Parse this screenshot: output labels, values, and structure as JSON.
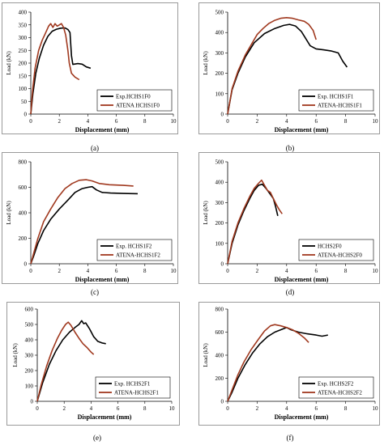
{
  "colors": {
    "experimental": "#000000",
    "atena": "#a0391f"
  },
  "charts": [
    {
      "caption": "(a)",
      "chart_data": {
        "type": "line",
        "xlabel": "Displacement (mm)",
        "ylabel": "Load (kN)",
        "xlim": [
          0,
          10
        ],
        "ylim": [
          0,
          400
        ],
        "xticks": [
          0,
          2,
          4,
          6,
          8,
          10
        ],
        "yticks": [
          0,
          50,
          100,
          150,
          200,
          250,
          300,
          350,
          400
        ],
        "legend_position": "bottom-right",
        "series": [
          {
            "name": "Exp.HCHS1F0",
            "color": "#000000",
            "points": [
              [
                0,
                0
              ],
              [
                0.15,
                80
              ],
              [
                0.35,
                160
              ],
              [
                0.6,
                220
              ],
              [
                0.9,
                270
              ],
              [
                1.2,
                305
              ],
              [
                1.5,
                325
              ],
              [
                1.8,
                333
              ],
              [
                2.1,
                337
              ],
              [
                2.4,
                338
              ],
              [
                2.6,
                332
              ],
              [
                2.75,
                320
              ],
              [
                2.85,
                230
              ],
              [
                2.95,
                195
              ],
              [
                3.3,
                198
              ],
              [
                3.6,
                196
              ],
              [
                3.9,
                185
              ],
              [
                4.2,
                180
              ]
            ]
          },
          {
            "name": "ATENA HCHS1F0",
            "color": "#a0391f",
            "points": [
              [
                0,
                0
              ],
              [
                0.12,
                90
              ],
              [
                0.3,
                180
              ],
              [
                0.55,
                250
              ],
              [
                0.8,
                290
              ],
              [
                1.05,
                320
              ],
              [
                1.25,
                345
              ],
              [
                1.4,
                355
              ],
              [
                1.55,
                340
              ],
              [
                1.7,
                355
              ],
              [
                1.85,
                345
              ],
              [
                2.0,
                350
              ],
              [
                2.15,
                355
              ],
              [
                2.3,
                340
              ],
              [
                2.45,
                310
              ],
              [
                2.6,
                250
              ],
              [
                2.7,
                200
              ],
              [
                2.85,
                160
              ],
              [
                3.1,
                145
              ],
              [
                3.4,
                135
              ]
            ]
          }
        ]
      }
    },
    {
      "caption": "(b)",
      "chart_data": {
        "type": "line",
        "xlabel": "Displacement (mm)",
        "ylabel": "Load (kN)",
        "xlim": [
          0,
          10
        ],
        "ylim": [
          0,
          500
        ],
        "xticks": [
          0,
          2,
          4,
          6,
          8,
          10
        ],
        "yticks": [
          0,
          100,
          200,
          300,
          400,
          500
        ],
        "legend_position": "bottom-right",
        "series": [
          {
            "name": "Exp. HCHS1F1",
            "color": "#000000",
            "points": [
              [
                0,
                0
              ],
              [
                0.3,
                120
              ],
              [
                0.7,
                200
              ],
              [
                1.2,
                280
              ],
              [
                1.8,
                350
              ],
              [
                2.5,
                395
              ],
              [
                3.2,
                420
              ],
              [
                3.8,
                435
              ],
              [
                4.2,
                440
              ],
              [
                4.6,
                432
              ],
              [
                5.0,
                405
              ],
              [
                5.3,
                370
              ],
              [
                5.6,
                335
              ],
              [
                6.0,
                320
              ],
              [
                6.5,
                315
              ],
              [
                7.0,
                310
              ],
              [
                7.5,
                300
              ],
              [
                7.8,
                260
              ],
              [
                8.1,
                230
              ]
            ]
          },
          {
            "name": "ATENA-HCHS1F1",
            "color": "#a0391f",
            "points": [
              [
                0,
                0
              ],
              [
                0.3,
                125
              ],
              [
                0.7,
                210
              ],
              [
                1.2,
                290
              ],
              [
                1.6,
                340
              ],
              [
                2.0,
                390
              ],
              [
                2.4,
                420
              ],
              [
                2.8,
                445
              ],
              [
                3.2,
                460
              ],
              [
                3.6,
                470
              ],
              [
                4.0,
                473
              ],
              [
                4.4,
                470
              ],
              [
                4.8,
                462
              ],
              [
                5.2,
                455
              ],
              [
                5.5,
                440
              ],
              [
                5.8,
                410
              ],
              [
                6.0,
                365
              ]
            ]
          }
        ]
      }
    },
    {
      "caption": "(c)",
      "chart_data": {
        "type": "line",
        "xlabel": "Displacement (mm)",
        "ylabel": "Load (kN)",
        "xlim": [
          0,
          10
        ],
        "ylim": [
          0,
          800
        ],
        "xticks": [
          0,
          2,
          4,
          6,
          8,
          10
        ],
        "yticks": [
          0,
          200,
          400,
          600,
          800
        ],
        "legend_position": "bottom-right",
        "series": [
          {
            "name": "Exp. HCHS1F2",
            "color": "#000000",
            "points": [
              [
                0,
                0
              ],
              [
                0.2,
                60
              ],
              [
                0.5,
                160
              ],
              [
                0.9,
                260
              ],
              [
                1.4,
                350
              ],
              [
                2.0,
                430
              ],
              [
                2.6,
                500
              ],
              [
                3.1,
                560
              ],
              [
                3.6,
                590
              ],
              [
                4.0,
                600
              ],
              [
                4.3,
                605
              ],
              [
                4.6,
                580
              ],
              [
                5.0,
                560
              ],
              [
                5.6,
                555
              ],
              [
                6.5,
                552
              ],
              [
                7.5,
                550
              ]
            ]
          },
          {
            "name": "ATENA-HCHS1F2",
            "color": "#a0391f",
            "points": [
              [
                0,
                0
              ],
              [
                0.2,
                80
              ],
              [
                0.5,
                200
              ],
              [
                0.9,
                330
              ],
              [
                1.4,
                430
              ],
              [
                1.9,
                520
              ],
              [
                2.4,
                590
              ],
              [
                2.9,
                630
              ],
              [
                3.4,
                655
              ],
              [
                3.9,
                660
              ],
              [
                4.3,
                650
              ],
              [
                4.8,
                630
              ],
              [
                5.5,
                620
              ],
              [
                6.5,
                615
              ],
              [
                7.2,
                610
              ]
            ]
          }
        ]
      }
    },
    {
      "caption": "(d)",
      "chart_data": {
        "type": "line",
        "xlabel": "Displacement (mm)",
        "ylabel": "Load (kN)",
        "xlim": [
          0,
          10
        ],
        "ylim": [
          0,
          500
        ],
        "xticks": [
          0,
          2,
          4,
          6,
          8,
          10
        ],
        "yticks": [
          0,
          100,
          200,
          300,
          400,
          500
        ],
        "legend_position": "bottom-right",
        "series": [
          {
            "name": "HCHS2F0",
            "color": "#000000",
            "points": [
              [
                0,
                0
              ],
              [
                0.3,
                100
              ],
              [
                0.7,
                190
              ],
              [
                1.1,
                260
              ],
              [
                1.5,
                320
              ],
              [
                1.8,
                360
              ],
              [
                2.1,
                385
              ],
              [
                2.35,
                390
              ],
              [
                2.6,
                370
              ],
              [
                2.9,
                340
              ],
              [
                3.1,
                320
              ],
              [
                3.25,
                280
              ],
              [
                3.4,
                235
              ]
            ]
          },
          {
            "name": "ATENA-HCHS2F0",
            "color": "#a0391f",
            "points": [
              [
                0,
                0
              ],
              [
                0.3,
                110
              ],
              [
                0.7,
                200
              ],
              [
                1.1,
                270
              ],
              [
                1.5,
                330
              ],
              [
                1.8,
                370
              ],
              [
                2.1,
                395
              ],
              [
                2.3,
                410
              ],
              [
                2.5,
                385
              ],
              [
                2.7,
                360
              ],
              [
                2.9,
                350
              ],
              [
                3.1,
                320
              ],
              [
                3.3,
                290
              ],
              [
                3.5,
                265
              ],
              [
                3.7,
                245
              ]
            ]
          }
        ]
      }
    },
    {
      "caption": "(e)",
      "chart_data": {
        "type": "line",
        "xlabel": "Displacement (mm)",
        "ylabel": "Load (kN)",
        "xlim": [
          0,
          10
        ],
        "ylim": [
          0,
          600
        ],
        "xticks": [
          0,
          2,
          4,
          6,
          8,
          10
        ],
        "yticks": [
          0,
          100,
          200,
          300,
          400,
          500,
          600
        ],
        "legend_position": "bottom-right",
        "series": [
          {
            "name": "Exp. HCHS2F1",
            "color": "#000000",
            "points": [
              [
                0,
                0
              ],
              [
                0.4,
                120
              ],
              [
                0.9,
                240
              ],
              [
                1.4,
                330
              ],
              [
                1.9,
                400
              ],
              [
                2.4,
                450
              ],
              [
                2.8,
                480
              ],
              [
                3.1,
                500
              ],
              [
                3.3,
                525
              ],
              [
                3.45,
                505
              ],
              [
                3.6,
                510
              ],
              [
                3.9,
                470
              ],
              [
                4.2,
                420
              ],
              [
                4.5,
                390
              ],
              [
                4.8,
                380
              ],
              [
                5.1,
                375
              ]
            ]
          },
          {
            "name": "ATENA-HCHS2F1",
            "color": "#a0391f",
            "points": [
              [
                0,
                0
              ],
              [
                0.3,
                110
              ],
              [
                0.7,
                230
              ],
              [
                1.1,
                330
              ],
              [
                1.5,
                410
              ],
              [
                1.8,
                460
              ],
              [
                2.1,
                500
              ],
              [
                2.3,
                515
              ],
              [
                2.5,
                495
              ],
              [
                2.8,
                450
              ],
              [
                3.1,
                410
              ],
              [
                3.4,
                375
              ],
              [
                3.7,
                350
              ],
              [
                4.0,
                320
              ],
              [
                4.2,
                305
              ]
            ]
          }
        ]
      }
    },
    {
      "caption": "(f)",
      "chart_data": {
        "type": "line",
        "xlabel": "Displacement (mm)",
        "ylabel": "Load (kN)",
        "xlim": [
          0,
          10
        ],
        "ylim": [
          0,
          800
        ],
        "xticks": [
          0,
          2,
          4,
          6,
          8,
          10
        ],
        "yticks": [
          0,
          200,
          400,
          600,
          800
        ],
        "legend_position": "bottom-right",
        "series": [
          {
            "name": "Exp. HCHS2F2",
            "color": "#000000",
            "points": [
              [
                0,
                0
              ],
              [
                0.3,
                80
              ],
              [
                0.7,
                200
              ],
              [
                1.2,
                320
              ],
              [
                1.7,
                420
              ],
              [
                2.2,
                500
              ],
              [
                2.7,
                560
              ],
              [
                3.2,
                600
              ],
              [
                3.6,
                620
              ],
              [
                4.0,
                640
              ],
              [
                4.3,
                620
              ],
              [
                4.8,
                600
              ],
              [
                5.4,
                585
              ],
              [
                6.0,
                575
              ],
              [
                6.4,
                565
              ],
              [
                6.8,
                575
              ]
            ]
          },
          {
            "name": "ATENA-HCHS2F2",
            "color": "#a0391f",
            "points": [
              [
                0,
                0
              ],
              [
                0.3,
                100
              ],
              [
                0.7,
                230
              ],
              [
                1.1,
                340
              ],
              [
                1.6,
                450
              ],
              [
                2.1,
                540
              ],
              [
                2.5,
                610
              ],
              [
                2.9,
                655
              ],
              [
                3.2,
                665
              ],
              [
                3.6,
                655
              ],
              [
                4.0,
                640
              ],
              [
                4.4,
                620
              ],
              [
                4.8,
                590
              ],
              [
                5.2,
                550
              ],
              [
                5.5,
                510
              ]
            ]
          }
        ]
      }
    }
  ]
}
